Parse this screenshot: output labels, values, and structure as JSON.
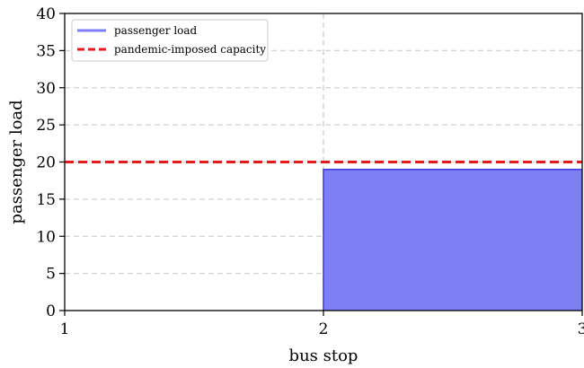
{
  "chart_data": {
    "type": "area",
    "xlabel": "bus stop",
    "ylabel": "passenger load",
    "xlim": [
      1,
      3
    ],
    "ylim": [
      0,
      40
    ],
    "x_ticks": [
      "1",
      "2",
      "3"
    ],
    "y_ticks": [
      "0",
      "5",
      "10",
      "15",
      "20",
      "25",
      "30",
      "35",
      "40"
    ],
    "grid": {
      "horizontal": "dashed",
      "vertical": "dashed"
    },
    "legend_position": "top-left",
    "series": [
      {
        "name": "passenger load",
        "type": "step-area",
        "color": "#7f7ff5",
        "edge_color": "#3b3bdd",
        "points": [
          {
            "x": 1,
            "y": 0
          },
          {
            "x": 2,
            "y": 19
          },
          {
            "x": 3,
            "y": 19
          }
        ]
      },
      {
        "name": "pandemic-imposed capacity",
        "type": "hline",
        "color": "#e41a1c",
        "y": 20
      }
    ]
  }
}
